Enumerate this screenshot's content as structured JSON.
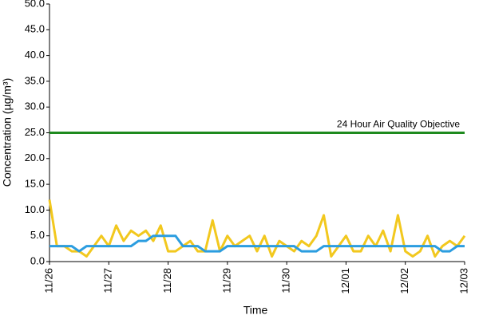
{
  "chart_data": {
    "type": "line",
    "ylabel": "Concentration (µg/m³)",
    "xlabel": "Time",
    "x": [
      0,
      0.125,
      0.25,
      0.375,
      0.5,
      0.625,
      0.75,
      0.875,
      1,
      1.125,
      1.25,
      1.375,
      1.5,
      1.625,
      1.75,
      1.875,
      2,
      2.125,
      2.25,
      2.375,
      2.5,
      2.625,
      2.75,
      2.875,
      3,
      3.125,
      3.25,
      3.375,
      3.5,
      3.625,
      3.75,
      3.875,
      4,
      4.125,
      4.25,
      4.375,
      4.5,
      4.625,
      4.75,
      4.875,
      5,
      5.125,
      5.25,
      5.375,
      5.5,
      5.625,
      5.75,
      5.875,
      6,
      6.125,
      6.25,
      6.375,
      6.5,
      6.625,
      6.75,
      6.875,
      7
    ],
    "series": [
      {
        "color": "#f2c81e",
        "values": [
          12,
          3,
          3,
          2,
          2,
          1,
          3,
          5,
          3,
          7,
          4,
          6,
          5,
          6,
          4,
          7,
          2,
          2,
          3,
          4,
          2,
          2,
          8,
          2,
          5,
          3,
          4,
          5,
          2,
          5,
          1,
          4,
          3,
          2,
          4,
          3,
          5,
          9,
          1,
          3,
          5,
          2,
          2,
          5,
          3,
          6,
          2,
          9,
          2,
          1,
          2,
          5,
          1,
          3,
          4,
          3,
          5
        ]
      },
      {
        "color": "#2b9de0",
        "values": [
          3,
          3,
          3,
          3,
          2,
          3,
          3,
          3,
          3,
          3,
          3,
          3,
          4,
          4,
          5,
          5,
          5,
          5,
          3,
          3,
          3,
          2,
          2,
          2,
          3,
          3,
          3,
          3,
          3,
          3,
          3,
          3,
          3,
          3,
          2,
          2,
          2,
          3,
          3,
          3,
          3,
          3,
          3,
          3,
          3,
          3,
          3,
          3,
          3,
          3,
          3,
          3,
          3,
          2,
          2,
          3,
          3
        ]
      }
    ],
    "objective": {
      "label": "24 Hour Air Quality Objective",
      "value": 25,
      "color": "#1e8a1e"
    },
    "xlim": [
      0,
      7
    ],
    "xticks": [
      {
        "value": 0,
        "label": "11/26"
      },
      {
        "value": 1,
        "label": "11/27"
      },
      {
        "value": 2,
        "label": "11/28"
      },
      {
        "value": 3,
        "label": "11/29"
      },
      {
        "value": 4,
        "label": "11/30"
      },
      {
        "value": 5,
        "label": "12/01"
      },
      {
        "value": 6,
        "label": "12/02"
      },
      {
        "value": 7,
        "label": "12/03"
      }
    ],
    "ylim": [
      0,
      50
    ],
    "yticks": [
      {
        "value": 0,
        "label": "0.0"
      },
      {
        "value": 5,
        "label": "5.0"
      },
      {
        "value": 10,
        "label": "10.0"
      },
      {
        "value": 15,
        "label": "15.0"
      },
      {
        "value": 20,
        "label": "20.0"
      },
      {
        "value": 25,
        "label": "25.0"
      },
      {
        "value": 30,
        "label": "30.0"
      },
      {
        "value": 35,
        "label": "35.0"
      },
      {
        "value": 40,
        "label": "40.0"
      },
      {
        "value": 45,
        "label": "45.0"
      },
      {
        "value": 50,
        "label": "50.0"
      }
    ],
    "grid": false
  }
}
